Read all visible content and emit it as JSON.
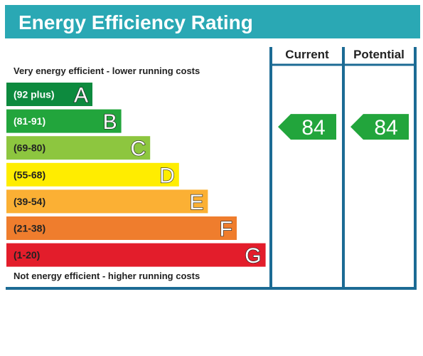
{
  "header": {
    "title": "Energy Efficiency Rating"
  },
  "chart_data": {
    "type": "bar",
    "top_caption": "Very energy efficient - lower running costs",
    "bottom_caption": "Not energy efficient - higher running costs",
    "bands": [
      {
        "range": "(92 plus)",
        "letter": "A",
        "color": "#0d8a3e",
        "dark_text": false
      },
      {
        "range": "(81-91)",
        "letter": "B",
        "color": "#22a53c",
        "dark_text": false
      },
      {
        "range": "(69-80)",
        "letter": "C",
        "color": "#8dc63f",
        "dark_text": true
      },
      {
        "range": "(55-68)",
        "letter": "D",
        "color": "#ffed00",
        "dark_text": true
      },
      {
        "range": "(39-54)",
        "letter": "E",
        "color": "#fbb034",
        "dark_text": true
      },
      {
        "range": "(21-38)",
        "letter": "F",
        "color": "#ef7d2d",
        "dark_text": true
      },
      {
        "range": "(1-20)",
        "letter": "G",
        "color": "#e31d2b",
        "dark_text": true
      }
    ],
    "columns": [
      {
        "label": "Current",
        "value": 84,
        "band": "B"
      },
      {
        "label": "Potential",
        "value": 84,
        "band": "B"
      }
    ],
    "frame_color": "#1c6b94",
    "arrow_color": "#22a53c"
  }
}
